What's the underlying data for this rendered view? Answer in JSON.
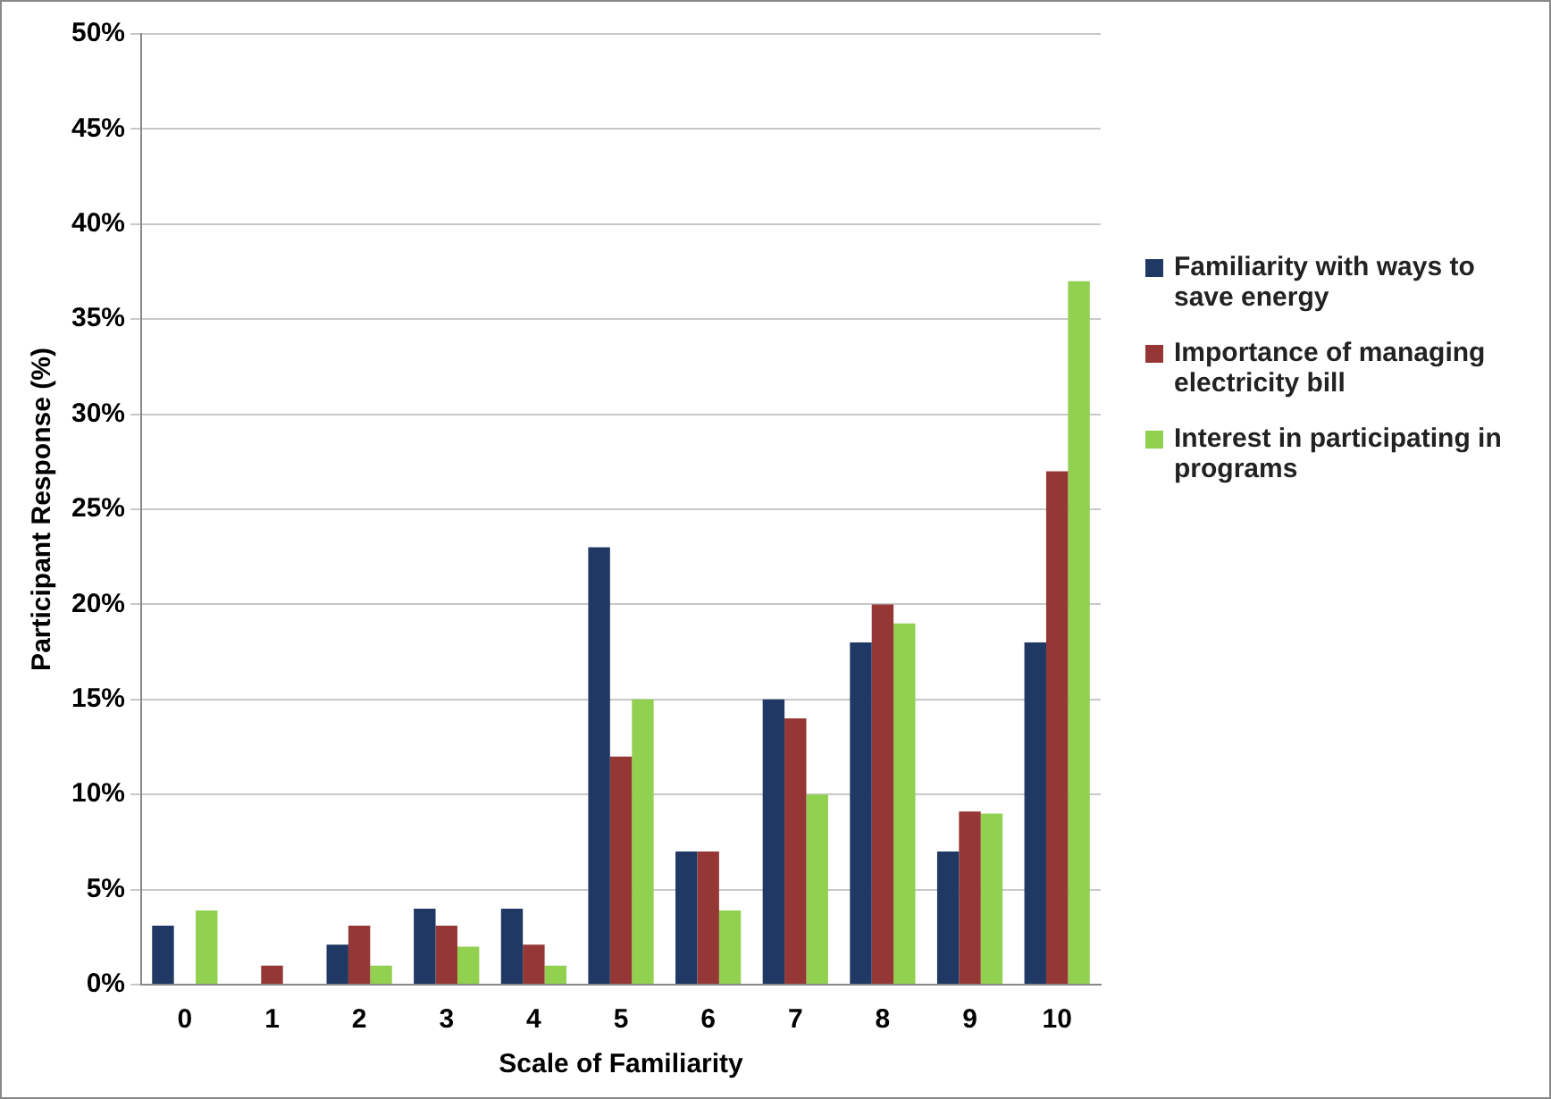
{
  "chart_data": {
    "type": "bar",
    "xlabel": "Scale of Familiarity",
    "ylabel": "Participant Response (%)",
    "categories": [
      "0",
      "1",
      "2",
      "3",
      "4",
      "5",
      "6",
      "7",
      "8",
      "9",
      "10"
    ],
    "series": [
      {
        "name": "Familiarity with ways to save energy",
        "color": "#1f3864",
        "values": [
          3.1,
          0,
          2.1,
          4,
          4,
          23,
          7,
          15,
          18,
          7,
          18
        ]
      },
      {
        "name": "Importance of managing electricity bill",
        "color": "#953735",
        "values": [
          0,
          1,
          3.1,
          3.1,
          2.1,
          12,
          7,
          14,
          20,
          9.1,
          27
        ]
      },
      {
        "name": "Interest in participating in programs",
        "color": "#92d050",
        "values": [
          3.9,
          0,
          1,
          2,
          1,
          15,
          3.9,
          10,
          19,
          9,
          37
        ]
      }
    ],
    "ylim": [
      0,
      50
    ],
    "yticks": [
      {
        "value": 0,
        "label": "0%"
      },
      {
        "value": 5,
        "label": "5%"
      },
      {
        "value": 10,
        "label": "10%"
      },
      {
        "value": 15,
        "label": "15%"
      },
      {
        "value": 20,
        "label": "20%"
      },
      {
        "value": 25,
        "label": "25%"
      },
      {
        "value": 30,
        "label": "30%"
      },
      {
        "value": 35,
        "label": "35%"
      },
      {
        "value": 40,
        "label": "40%"
      },
      {
        "value": 45,
        "label": "45%"
      },
      {
        "value": 50,
        "label": "50%"
      }
    ],
    "grid": "y",
    "legend": "right"
  }
}
